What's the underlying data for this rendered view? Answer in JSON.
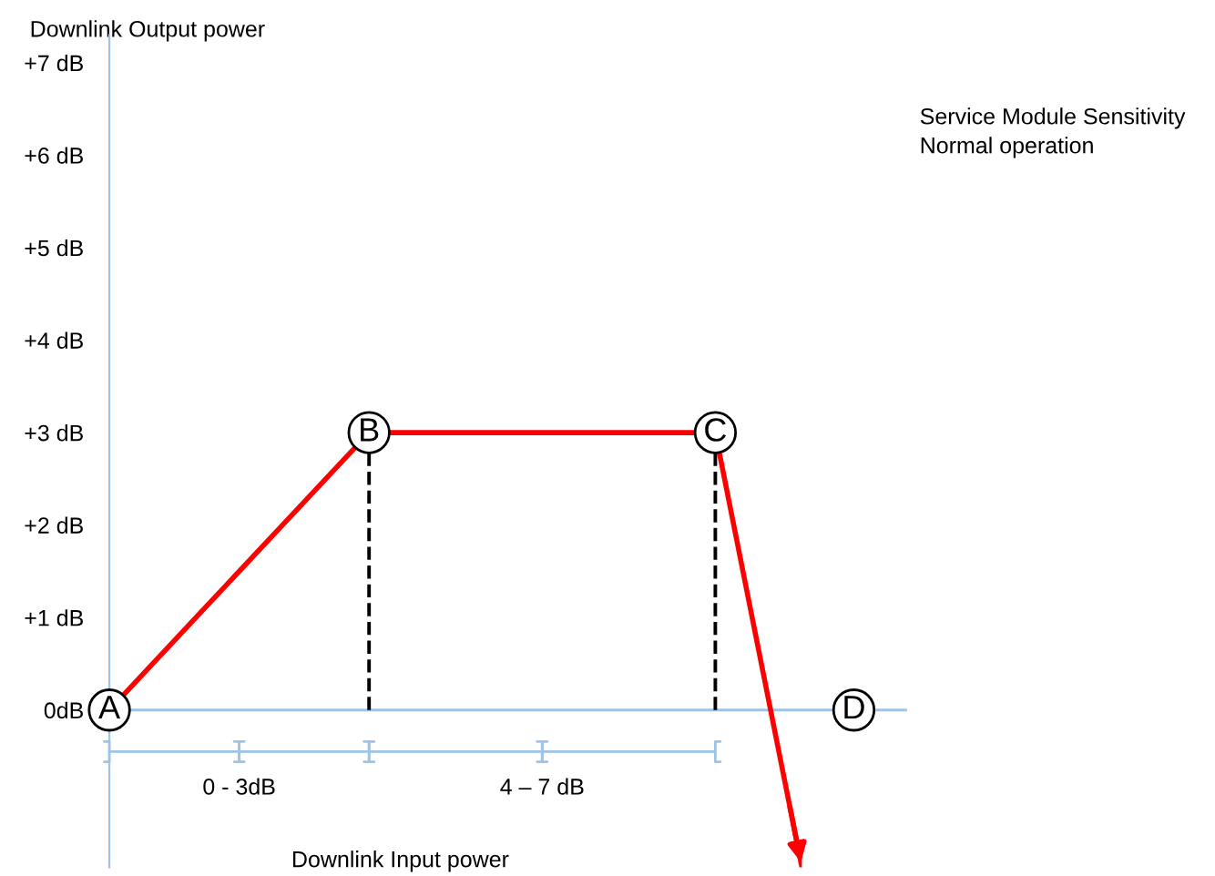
{
  "chart_data": {
    "type": "line",
    "xlabel": "Downlink Input power",
    "ylabel": "Downlink Output power",
    "categories": [
      null,
      null,
      null,
      null,
      null,
      null,
      null,
      null,
      null
    ],
    "ylim": [
      -1.7,
      7.3
    ],
    "yticks": [
      {
        "value": 0,
        "label": "0dB"
      },
      {
        "value": 1,
        "label": "+1 dB"
      },
      {
        "value": 2,
        "label": "+2 dB"
      },
      {
        "value": 3,
        "label": "+3 dB"
      },
      {
        "value": 4,
        "label": "+4 dB"
      },
      {
        "value": 5,
        "label": "+5 dB"
      },
      {
        "value": 6,
        "label": "+6 dB"
      },
      {
        "value": 7,
        "label": "+7 dB"
      }
    ],
    "tick_labels": "y",
    "ref_lines": [
      {
        "axis": "y",
        "value": 0,
        "color": "#9dc3e6"
      }
    ],
    "series": [
      {
        "color": "#ff0000",
        "values": [
          0,
          1,
          2,
          3,
          3,
          3,
          3,
          3,
          -1.7
        ],
        "value_labels": [
          "A",
          null,
          null,
          "B",
          null,
          null,
          null,
          "C",
          null
        ]
      }
    ],
    "annotations": [
      "D",
      "0 - 3dB",
      "4 – 7 dB",
      "Service Module Sensitivity",
      "Normal operation"
    ]
  }
}
